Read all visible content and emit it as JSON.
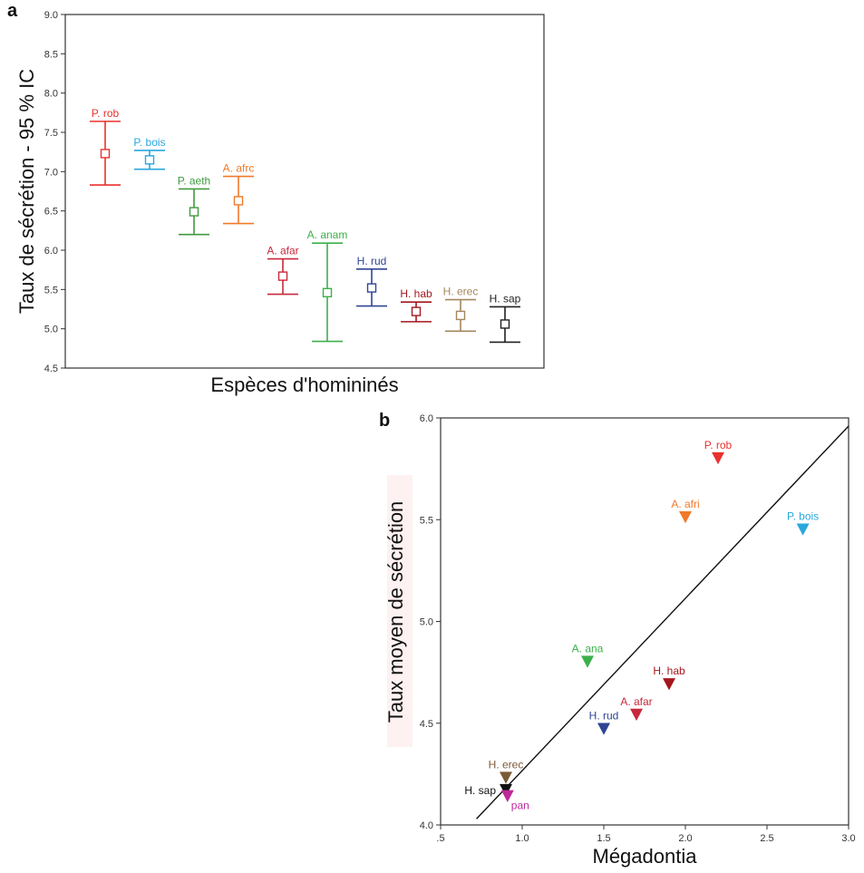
{
  "chart_data": [
    {
      "panel": "a",
      "type": "errorbar",
      "xlabel": "Espèces d'homininés",
      "ylabel": "Taux de sécrétion - 95 % IC",
      "ylim": [
        4.5,
        9.0
      ],
      "yticks": [
        "4.5",
        "5.0",
        "5.5",
        "6.0",
        "6.5",
        "7.0",
        "7.5",
        "8.0",
        "8.5",
        "9.0"
      ],
      "points": [
        {
          "label": "P. rob",
          "mean": 7.23,
          "low": 6.83,
          "high": 7.64,
          "color": "#e8322f"
        },
        {
          "label": "P. bois",
          "mean": 7.15,
          "low": 7.03,
          "high": 7.27,
          "color": "#2aa7dd"
        },
        {
          "label": "P. aeth",
          "mean": 6.49,
          "low": 6.2,
          "high": 6.78,
          "color": "#3f9a3f"
        },
        {
          "label": "A. afrc",
          "mean": 6.63,
          "low": 6.34,
          "high": 6.94,
          "color": "#f07a2a"
        },
        {
          "label": "A. afar",
          "mean": 5.67,
          "low": 5.44,
          "high": 5.89,
          "color": "#c8283c"
        },
        {
          "label": "A. anam",
          "mean": 5.46,
          "low": 4.84,
          "high": 6.09,
          "color": "#3cb04a"
        },
        {
          "label": "H. rud",
          "mean": 5.52,
          "low": 5.29,
          "high": 5.76,
          "color": "#2f4593"
        },
        {
          "label": "H. hab",
          "mean": 5.22,
          "low": 5.09,
          "high": 5.34,
          "color": "#a3171e"
        },
        {
          "label": "H. erec",
          "mean": 5.17,
          "low": 4.97,
          "high": 5.37,
          "color": "#a5865c"
        },
        {
          "label": "H. sap",
          "mean": 5.06,
          "low": 4.83,
          "high": 5.28,
          "color": "#222222"
        }
      ]
    },
    {
      "panel": "b",
      "type": "scatter",
      "xlabel": "Mégadontia",
      "ylabel": "Taux moyen de sécrétion",
      "xlim": [
        0.5,
        3.0
      ],
      "ylim": [
        4.0,
        6.0
      ],
      "xticks": [
        ".5",
        "1.0",
        "1.5",
        "2.0",
        "2.5",
        "3.0"
      ],
      "yticks": [
        "4.0",
        "4.5",
        "5.0",
        "5.5",
        "6.0"
      ],
      "fit_line": {
        "x": [
          0.72,
          3.0
        ],
        "y": [
          4.03,
          5.96
        ]
      },
      "points": [
        {
          "label": "P. rob",
          "x": 2.2,
          "y": 5.8,
          "color": "#e8322f"
        },
        {
          "label": "A. afri",
          "x": 2.0,
          "y": 5.51,
          "color": "#f07a2a"
        },
        {
          "label": "P. bois",
          "x": 2.72,
          "y": 5.45,
          "color": "#2aa7dd"
        },
        {
          "label": "A. ana",
          "x": 1.4,
          "y": 4.8,
          "color": "#3cb04a"
        },
        {
          "label": "H. hab",
          "x": 1.9,
          "y": 4.69,
          "color": "#a3171e"
        },
        {
          "label": "A. afar",
          "x": 1.7,
          "y": 4.54,
          "color": "#c8283c"
        },
        {
          "label": "H. rud",
          "x": 1.5,
          "y": 4.47,
          "color": "#2f4593"
        },
        {
          "label": "H. erec",
          "x": 0.9,
          "y": 4.23,
          "color": "#7a5a36"
        },
        {
          "label": "H. sap",
          "x": 0.9,
          "y": 4.17,
          "color": "#111111"
        },
        {
          "label": "pan",
          "x": 0.91,
          "y": 4.14,
          "color": "#c0289a"
        }
      ]
    }
  ]
}
